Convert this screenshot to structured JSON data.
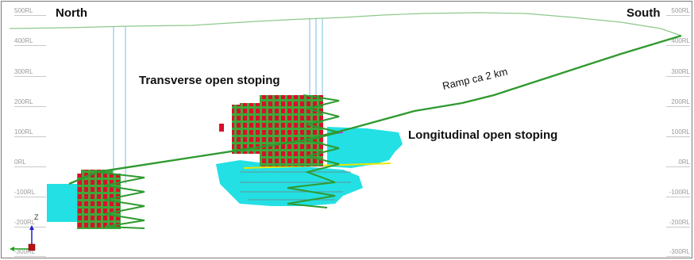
{
  "directions": {
    "north": "North",
    "south": "South"
  },
  "levels_left": [
    "500RL",
    "400RL",
    "300RL",
    "200RL",
    "100RL",
    "0RL",
    "-100RL",
    "-200RL",
    "-300RL"
  ],
  "levels_right": [
    "500RL",
    "400RL",
    "300RL",
    "200RL",
    "100RL",
    "0RL",
    "-100RL",
    "-200RL",
    "-300RL"
  ],
  "annotations": {
    "transverse": "Transverse open stoping",
    "longitudinal": "Longitudinal open stoping",
    "ramp": "Ramp ca 2 km"
  },
  "axis": {
    "z": "Z"
  },
  "colors": {
    "stope_red": "#d8102a",
    "stope_green": "#3ea83a",
    "stope_cyan": "#23e0e4",
    "ramp_green": "#2f9a2f",
    "topography": "#8cc88c",
    "shaft": "#8ec8e8",
    "yellow_drive": "#e8e800",
    "magenta_drive": "#d020d0"
  }
}
